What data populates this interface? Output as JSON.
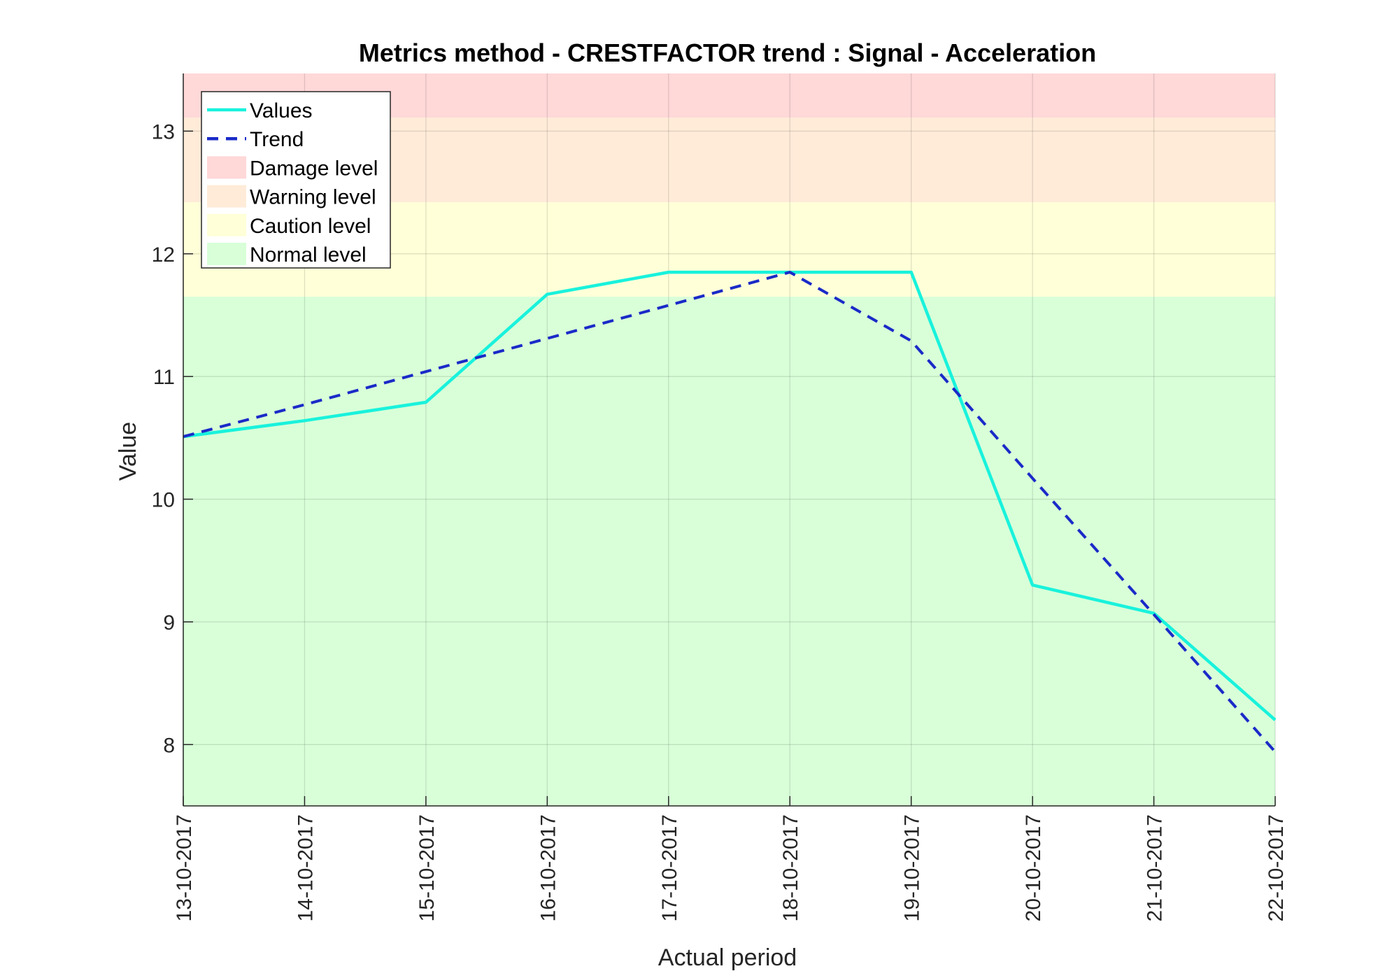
{
  "chart_data": {
    "type": "line",
    "title": "Metrics method - CRESTFACTOR trend : Signal - Acceleration",
    "xlabel": "Actual period",
    "ylabel": "Value",
    "categories": [
      "13-10-2017",
      "14-10-2017",
      "15-10-2017",
      "16-10-2017",
      "17-10-2017",
      "18-10-2017",
      "19-10-2017",
      "20-10-2017",
      "21-10-2017",
      "22-10-2017"
    ],
    "ylim": [
      7.5,
      13.47
    ],
    "yticks": [
      8,
      9,
      10,
      11,
      12,
      13
    ],
    "grid": true,
    "legend_position": "top-left",
    "series": [
      {
        "name": "Values",
        "style": "solid",
        "color": "#19f2dc",
        "values": [
          10.51,
          10.64,
          10.79,
          11.67,
          11.85,
          11.85,
          11.85,
          9.3,
          9.07,
          8.2
        ]
      },
      {
        "name": "Trend",
        "style": "dashed",
        "color": "#1a2ac8",
        "values": [
          10.51,
          10.77,
          11.04,
          11.31,
          11.58,
          11.85,
          11.29,
          10.17,
          9.06,
          7.94
        ]
      }
    ],
    "bands": [
      {
        "name": "Damage level",
        "from": 13.11,
        "to": 13.47,
        "color": "#ffd8d8"
      },
      {
        "name": "Warning level",
        "from": 12.42,
        "to": 13.11,
        "color": "#ffebd8"
      },
      {
        "name": "Caution level",
        "from": 11.65,
        "to": 12.42,
        "color": "#ffffd8"
      },
      {
        "name": "Normal level",
        "from": 7.5,
        "to": 11.65,
        "color": "#d8ffd8"
      }
    ]
  }
}
